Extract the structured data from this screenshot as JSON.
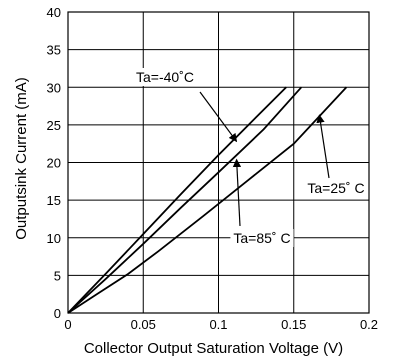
{
  "chart_data": {
    "type": "line",
    "title": "",
    "xlabel": "Collector Output Saturation Voltage (V)",
    "ylabel": "Outputsink Current (mA)",
    "xlim": [
      0,
      0.2
    ],
    "ylim": [
      0,
      40
    ],
    "x_ticks": [
      0,
      0.05,
      0.1,
      0.15,
      0.2
    ],
    "x_tick_labels": [
      "0",
      "0.05",
      "0.1",
      "0.15",
      "0.2"
    ],
    "y_ticks": [
      0,
      5,
      10,
      15,
      20,
      25,
      30,
      35,
      40
    ],
    "y_tick_labels": [
      "0",
      "5",
      "10",
      "15",
      "20",
      "25",
      "30",
      "35",
      "40"
    ],
    "grid": true,
    "series": [
      {
        "name": "Ta=-40°C",
        "x": [
          0,
          0.025,
          0.05,
          0.075,
          0.1,
          0.125,
          0.145
        ],
        "y": [
          0,
          5.2,
          10.5,
          15.8,
          21,
          26,
          30
        ]
      },
      {
        "name": "Ta=85°C",
        "x": [
          0,
          0.025,
          0.05,
          0.075,
          0.1,
          0.13,
          0.155
        ],
        "y": [
          0,
          4.5,
          9.2,
          14,
          18.7,
          24.4,
          30
        ]
      },
      {
        "name": "Ta=25°C",
        "x": [
          0,
          0.02,
          0.04,
          0.06,
          0.09,
          0.12,
          0.15,
          0.185
        ],
        "y": [
          0,
          2.6,
          5.2,
          8.2,
          12.9,
          17.7,
          22.5,
          30
        ]
      }
    ],
    "annotations": [
      {
        "text": "Ta=-40˚C",
        "arrow_to": [
          0.112,
          22.8
        ]
      },
      {
        "text": "Ta=25˚ C",
        "arrow_to": [
          0.167,
          26.3
        ]
      },
      {
        "text": "Ta=85˚ C",
        "arrow_to": [
          0.112,
          20.4
        ]
      }
    ]
  }
}
